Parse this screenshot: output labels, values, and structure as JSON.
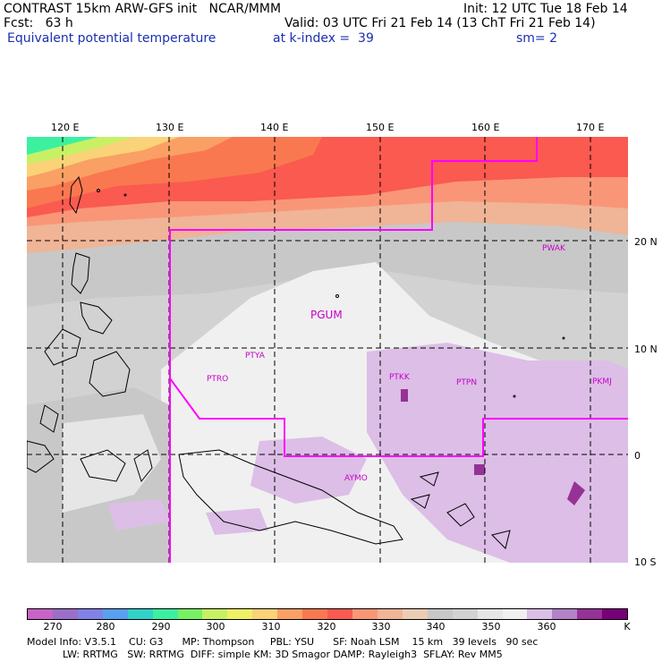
{
  "header": {
    "line1_left": "CONTRAST 15km ARW-GFS init   NCAR/MMM",
    "line1_right": "Init: 12 UTC Tue 18 Feb 14",
    "line2_left": "Fcst:   63 h",
    "line2_right": "Valid: 03 UTC Fri 21 Feb 14 (13 ChT Fri 21 Feb 14)",
    "line3_left": "Equivalent potential temperature",
    "line3_mid": "at k-index =  39",
    "line3_right": "sm= 2"
  },
  "lon_labels": [
    "120 E",
    "130 E",
    "140 E",
    "150 E",
    "160 E",
    "170 E"
  ],
  "lat_labels": [
    "20 N",
    "10 N",
    "0",
    "10 S"
  ],
  "stations": [
    "PWAK",
    "PGUM",
    "PTYA",
    "PTRO",
    "PTKK",
    "PTPN",
    "PKMJ",
    "AYMO"
  ],
  "colorbar": {
    "colors": [
      "#c864c8",
      "#9b6ec8",
      "#8282e6",
      "#5aa0f0",
      "#32d2c8",
      "#3cf0a0",
      "#78f064",
      "#c8f064",
      "#f0f064",
      "#fad278",
      "#faa064",
      "#fa7850",
      "#fa5a50",
      "#fa9678",
      "#f0b496",
      "#ebcdb4",
      "#c8c8c8",
      "#d2d2d2",
      "#e6e6e6",
      "#f0f0f0",
      "#dcbee6",
      "#b482c8",
      "#963296",
      "#780078"
    ],
    "ticks": [
      "270",
      "280",
      "290",
      "300",
      "310",
      "320",
      "330",
      "340",
      "350",
      "360"
    ],
    "unit": "K"
  },
  "footer": {
    "line1": "Model Info: V3.5.1    CU: G3      MP: Thompson     PBL: YSU      SF: Noah LSM    15 km   39 levels   90 sec",
    "line2": "LW: RRTMG   SW: RRTMG  DIFF: simple KM: 3D Smagor DAMP: Rayleigh3  SFLAY: Rev MM5"
  }
}
